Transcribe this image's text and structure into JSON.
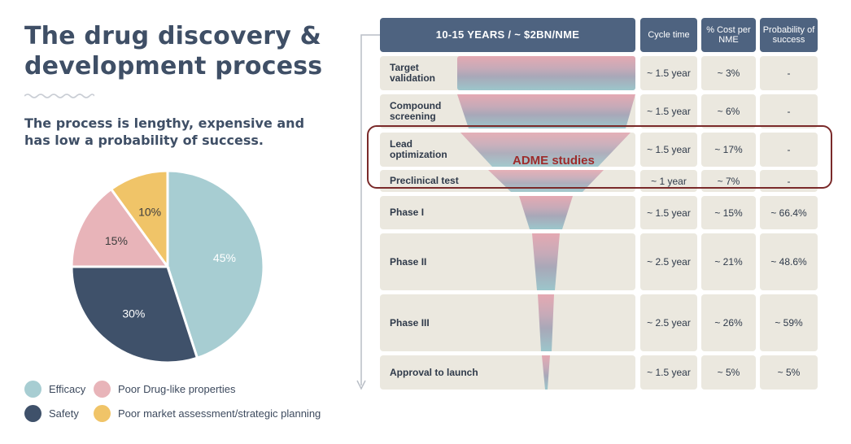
{
  "title_line1": "The drug discovery &",
  "title_line2": "development  process",
  "subtitle": "The process is lengthy, expensive and has low a probability of success.",
  "pie": {
    "slices": [
      {
        "label": "Efficacy",
        "value": 45,
        "text": "45%",
        "color": "#a7cdd2"
      },
      {
        "label": "Safety",
        "value": 30,
        "text": "30%",
        "color": "#3f516a"
      },
      {
        "label": "Poor Drug-like properties",
        "value": 15,
        "text": "15%",
        "color": "#e8b4b9"
      },
      {
        "label": "Poor market assessment/strategic planning",
        "value": 10,
        "text": "10%",
        "color": "#f0c468"
      }
    ]
  },
  "legend": {
    "efficacy": "Efficacy",
    "poor_drug": "Poor Drug-like properties",
    "safety": "Safety",
    "poor_market": "Poor market assessment/strategic planning"
  },
  "table": {
    "header_main": "10-15 YEARS   /  ~ $2BN/NME",
    "col_cycle": "Cycle time",
    "col_cost": "% Cost per NME",
    "col_prob": "Probability of success",
    "rows": [
      {
        "stage": "Target validation",
        "cycle": "~ 1.5 year",
        "cost": "~ 3%",
        "prob": "-"
      },
      {
        "stage": "Compound screening",
        "cycle": "~ 1.5 year",
        "cost": "~ 6%",
        "prob": "-"
      },
      {
        "stage": "Lead optimization",
        "cycle": "~ 1.5 year",
        "cost": "~ 17%",
        "prob": "-"
      },
      {
        "stage": "Preclinical test",
        "cycle": "~ 1 year",
        "cost": "~ 7%",
        "prob": "-"
      },
      {
        "stage": "Phase I",
        "cycle": "~ 1.5 year",
        "cost": "~ 15%",
        "prob": "~ 66.4%"
      },
      {
        "stage": "Phase II",
        "cycle": "~ 2.5 year",
        "cost": "~ 21%",
        "prob": "~ 48.6%"
      },
      {
        "stage": "Phase III",
        "cycle": "~ 2.5 year",
        "cost": "~ 26%",
        "prob": "~ 59%"
      },
      {
        "stage": "Approval to launch",
        "cycle": "~ 1.5 year",
        "cost": "~ 5%",
        "prob": "~ 5%"
      }
    ]
  },
  "adme_label": "ADME studies",
  "colors": {
    "header": "#4e6380",
    "row_bg": "#ebe8df",
    "adme": "#7a2a2a",
    "funnel_top": "#e2a7b0",
    "funnel_bottom": "#9fc6cb"
  }
}
